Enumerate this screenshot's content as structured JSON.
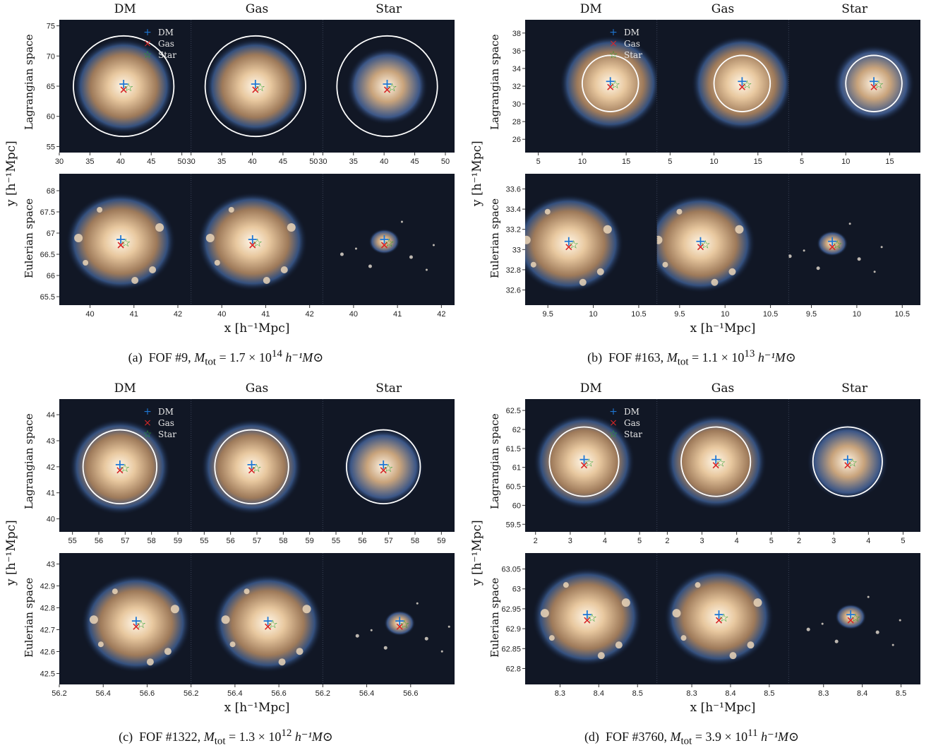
{
  "legend": {
    "dm": {
      "label": "DM",
      "color": "#1f77d4"
    },
    "gas": {
      "label": "Gas",
      "color": "#d62728"
    },
    "star": {
      "label": "Star",
      "color": "#2ca02c"
    }
  },
  "columns": [
    "DM",
    "Gas",
    "Star"
  ],
  "rows": {
    "lagrangian": "Lagrangian space",
    "eulerian": "Eulerian space"
  },
  "axis": {
    "x": "x [h⁻¹Mpc]",
    "y": "y [h⁻¹Mpc]"
  },
  "panels": [
    {
      "id": "a",
      "caption": {
        "letter": "(a)",
        "fof": "FOF #9,",
        "mass": "M",
        "mass_sub": "tot",
        "value": "= 1.7 × 10",
        "exp": "14",
        "unit": "h⁻¹M⊙"
      },
      "lag": {
        "xlim": [
          30,
          51.5
        ],
        "ylim": [
          54,
          76
        ],
        "xticks": [
          30,
          35,
          40,
          45,
          50
        ],
        "yticks": [
          55,
          60,
          65,
          70,
          75
        ],
        "centers": [
          [
            40.5,
            65
          ],
          [
            40.5,
            65
          ],
          [
            40.5,
            65
          ]
        ],
        "circle_r": 8.2
      },
      "eul": {
        "xlim": [
          39.3,
          42.3
        ],
        "ylim": [
          65.3,
          68.4
        ],
        "xticks": [
          40,
          41,
          42
        ],
        "yticks": [
          65.5,
          66,
          66.5,
          67,
          67.5,
          68
        ],
        "centers": [
          [
            40.7,
            66.8
          ],
          [
            40.7,
            66.8
          ],
          [
            40.7,
            66.8
          ]
        ]
      }
    },
    {
      "id": "b",
      "caption": {
        "letter": "(b)",
        "fof": "FOF #163,",
        "mass": "M",
        "mass_sub": "tot",
        "value": "= 1.1 × 10",
        "exp": "13",
        "unit": "h⁻¹M⊙"
      },
      "lag": {
        "xlim": [
          3.5,
          18.5
        ],
        "ylim": [
          24.5,
          39.5
        ],
        "xticks": [
          5,
          10,
          15
        ],
        "yticks": [
          26,
          28,
          30,
          32,
          34,
          36,
          38
        ],
        "centers": [
          [
            13.2,
            32.3
          ],
          [
            13.2,
            32.3
          ],
          [
            13.2,
            32.3
          ]
        ],
        "circle_r": 3.2
      },
      "eul": {
        "xlim": [
          9.25,
          10.7
        ],
        "ylim": [
          32.45,
          33.75
        ],
        "xticks": [
          9.5,
          10,
          10.5
        ],
        "yticks": [
          32.6,
          32.8,
          33,
          33.2,
          33.4,
          33.6
        ],
        "centers": [
          [
            9.73,
            33.06
          ],
          [
            9.73,
            33.06
          ],
          [
            9.73,
            33.06
          ]
        ]
      }
    },
    {
      "id": "c",
      "caption": {
        "letter": "(c)",
        "fof": "FOF #1322,",
        "mass": "M",
        "mass_sub": "tot",
        "value": "= 1.3 × 10",
        "exp": "12",
        "unit": "h⁻¹M⊙"
      },
      "lag": {
        "xlim": [
          54.5,
          59.5
        ],
        "ylim": [
          39.5,
          44.6
        ],
        "xticks": [
          55,
          56,
          57,
          58,
          59
        ],
        "yticks": [
          40,
          41,
          42,
          43,
          44
        ],
        "centers": [
          [
            56.8,
            42.0
          ],
          [
            56.8,
            42.0
          ],
          [
            56.8,
            42.0
          ]
        ],
        "circle_r": 1.4
      },
      "eul": {
        "xlim": [
          56.2,
          56.8
        ],
        "ylim": [
          42.45,
          43.05
        ],
        "xticks": [
          56.2,
          56.4,
          56.6
        ],
        "yticks": [
          42.5,
          42.6,
          42.7,
          42.8,
          42.9,
          43
        ],
        "centers": [
          [
            56.55,
            42.73
          ],
          [
            56.55,
            42.73
          ],
          [
            56.55,
            42.73
          ]
        ]
      }
    },
    {
      "id": "d",
      "caption": {
        "letter": "(d)",
        "fof": "FOF #3760,",
        "mass": "M",
        "mass_sub": "tot",
        "value": "= 3.9 × 10",
        "exp": "11",
        "unit": "h⁻¹M⊙"
      },
      "lag": {
        "xlim": [
          1.7,
          5.5
        ],
        "ylim": [
          59.3,
          62.8
        ],
        "xticks": [
          2,
          3,
          4,
          5
        ],
        "yticks": [
          59.5,
          60,
          60.5,
          61,
          61.5,
          62,
          62.5
        ],
        "centers": [
          [
            3.4,
            61.15
          ],
          [
            3.4,
            61.15
          ],
          [
            3.4,
            61.15
          ]
        ],
        "circle_r": 1.0
      },
      "eul": {
        "xlim": [
          8.21,
          8.55
        ],
        "ylim": [
          62.76,
          63.09
        ],
        "xticks": [
          8.3,
          8.4,
          8.5
        ],
        "yticks": [
          62.8,
          62.85,
          62.9,
          62.95,
          63,
          63.05
        ],
        "centers": [
          [
            8.37,
            62.93
          ],
          [
            8.37,
            62.93
          ],
          [
            8.37,
            62.93
          ]
        ]
      }
    }
  ]
}
